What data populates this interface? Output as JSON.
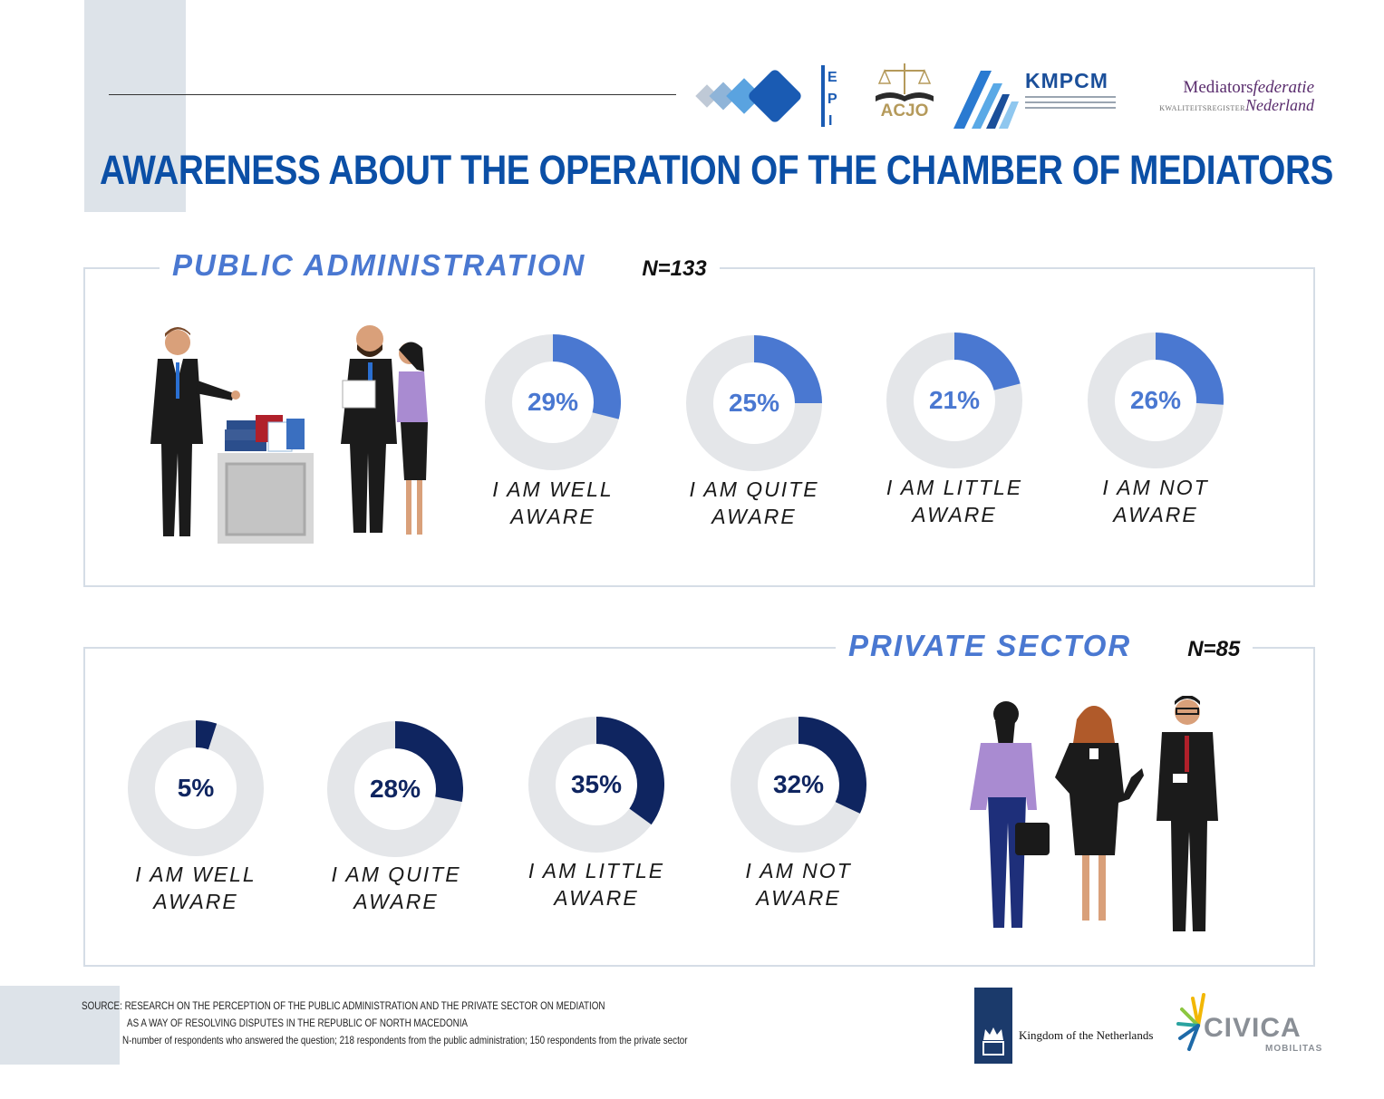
{
  "title": "AWARENESS ABOUT THE OPERATION OF THE CHAMBER OF MEDIATORS",
  "logos": {
    "epi": "EPI",
    "acjo": "ACJO",
    "kmpcm": "KMPCM",
    "mediators_line1_a": "Mediators",
    "mediators_line1_b": "federatie",
    "mediators_line2_a": "KWALITEITSREGISTER",
    "mediators_line2_b": "Nederland",
    "netherlands": "Kingdom of the Netherlands",
    "civica": "CIVICA",
    "civica_sub": "MOBILITAS"
  },
  "sections": {
    "public": {
      "title": "PUBLIC ADMINISTRATION",
      "n": "N=133"
    },
    "private": {
      "title": "PRIVATE SECTOR",
      "n": "N=85"
    }
  },
  "labels": {
    "well_1": "I AM WELL",
    "well_2": "AWARE",
    "quite_1": "I AM QUITE",
    "quite_2": "AWARE",
    "little_1": "I AM LITTLE",
    "little_2": "AWARE",
    "not_1": "I AM NOT",
    "not_2": "AWARE"
  },
  "chart_data": [
    {
      "type": "pie",
      "section": "PUBLIC ADMINISTRATION",
      "categories": [
        "I AM WELL AWARE",
        "I AM QUITE AWARE",
        "I AM LITTLE AWARE",
        "I AM NOT AWARE"
      ],
      "values": [
        29,
        25,
        21,
        26
      ],
      "value_labels": [
        "29%",
        "25%",
        "21%",
        "26%"
      ],
      "accent_color": "#4a78d1",
      "track_color": "#e4e6e9"
    },
    {
      "type": "pie",
      "section": "PRIVATE SECTOR",
      "categories": [
        "I AM WELL AWARE",
        "I AM QUITE AWARE",
        "I AM LITTLE AWARE",
        "I AM NOT AWARE"
      ],
      "values": [
        5,
        28,
        35,
        32
      ],
      "value_labels": [
        "5%",
        "28%",
        "35%",
        "32%"
      ],
      "accent_color": "#0f2560",
      "track_color": "#e4e6e9"
    }
  ],
  "source": {
    "line1": "SOURCE:  RESEARCH ON THE PERCEPTION OF THE PUBLIC ADMINISTRATION AND THE PRIVATE SECTOR ON MEDIATION",
    "line2": "AS A WAY OF RESOLVING DISPUTES IN THE REPUBLIC OF NORTH MACEDONIA",
    "line3": "N-number of respondents who answered the question; 218 respondents from the public administration; 150 respondents from the private sector"
  }
}
